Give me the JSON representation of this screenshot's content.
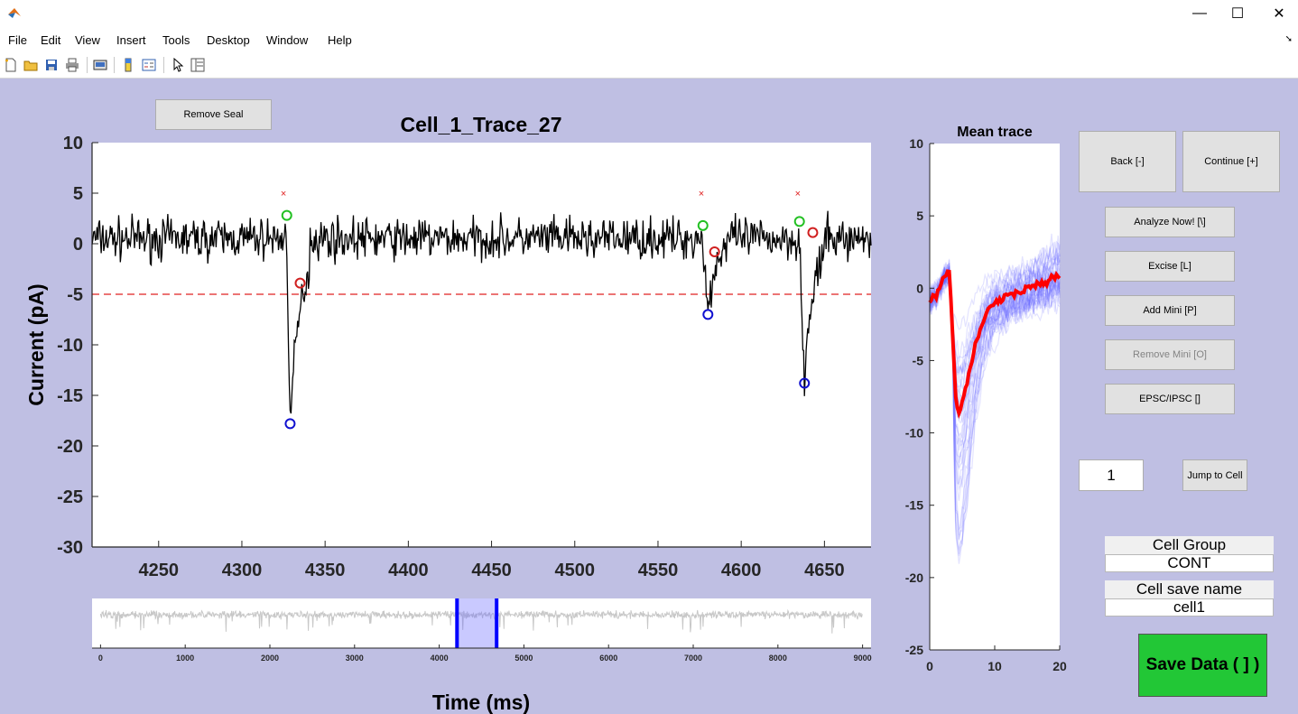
{
  "menu": [
    "File",
    "Edit",
    "View",
    "Insert",
    "Tools",
    "Desktop",
    "Window",
    "Help"
  ],
  "window_controls": {
    "minimize": "—",
    "maximize": "☐",
    "close": "✕"
  },
  "buttons": {
    "remove_seal": "Remove Seal",
    "back": "Back [-]",
    "continue": "Continue [+]",
    "analyze": "Analyze Now! [\\]",
    "excise": "Excise [L]",
    "add_mini": "Add Mini [P]",
    "remove_mini": "Remove Mini [O]",
    "epsc_ipsc": "EPSC/IPSC []",
    "jump_to_cell": "Jump to Cell",
    "save_data": "Save Data ( ] )"
  },
  "inputs": {
    "cell_number": "1"
  },
  "fields": {
    "cell_group_label": "Cell Group",
    "cell_group_value": "CONT",
    "cell_save_name_label": "Cell save name",
    "cell_save_name_value": "cell1"
  },
  "colors": {
    "figure_bg": "#bfbfe3",
    "trace": "#000000",
    "threshold": "#e02020",
    "onset": "#22c022",
    "peak": "#1010d0",
    "end": "#d02020",
    "mean": "#ff0000",
    "overlay": "#6464ff",
    "save_green": "#22c736"
  },
  "main_plot": {
    "title": "Cell_1_Trace_27",
    "ylabel": "Current (pA)",
    "xlabel": "Time (ms)",
    "xticks": [
      "4250",
      "4300",
      "4350",
      "4400",
      "4450",
      "4500",
      "4550",
      "4600",
      "4650"
    ],
    "yticks": [
      "10",
      "5",
      "0",
      "-5",
      "-10",
      "-15",
      "-20",
      "-25",
      "-30"
    ]
  },
  "overview_plot": {
    "xticks": [
      "0",
      "1000",
      "2000",
      "3000",
      "4000",
      "5000",
      "6000",
      "7000",
      "8000",
      "9000"
    ]
  },
  "mean_plot": {
    "title": "Mean trace",
    "xticks": [
      "0",
      "10",
      "20"
    ],
    "yticks": [
      "10",
      "5",
      "0",
      "-5",
      "-10",
      "-15",
      "-20",
      "-25"
    ]
  },
  "chart_data": [
    {
      "type": "line",
      "title": "Cell_1_Trace_27",
      "xlabel": "Time (ms)",
      "ylabel": "Current (pA)",
      "xlim": [
        4210,
        4678
      ],
      "ylim": [
        -30,
        10
      ],
      "threshold": -5,
      "events": [
        {
          "onset": [
            4327,
            2.8
          ],
          "peak": [
            4329,
            -17.8
          ],
          "end": [
            4335,
            -3.9
          ],
          "marker_x": [
            4325,
            5.0
          ]
        },
        {
          "onset": [
            4577,
            1.8
          ],
          "peak": [
            4580,
            -7.0
          ],
          "end": [
            4584,
            -0.8
          ],
          "marker_x": [
            4576,
            5.0
          ]
        },
        {
          "onset": [
            4635,
            2.2
          ],
          "peak": [
            4638,
            -13.8
          ],
          "end": [
            4643,
            1.1
          ],
          "marker_x": [
            4634,
            5.0
          ]
        }
      ],
      "baseline_mean": 0.5,
      "noise_amplitude": 2
    },
    {
      "type": "line",
      "xlim": [
        -100,
        9100
      ],
      "view_window": [
        4210,
        4678
      ]
    },
    {
      "type": "line",
      "title": "Mean trace",
      "xlim": [
        0,
        20
      ],
      "ylim": [
        -25,
        10
      ],
      "mean": {
        "x": [
          0,
          1,
          2,
          3,
          3.5,
          4,
          4.5,
          5,
          6,
          7,
          8,
          9,
          10,
          12,
          14,
          16,
          18,
          19,
          20
        ],
        "y": [
          -0.8,
          -0.5,
          0.5,
          1.2,
          -3,
          -7.5,
          -8.6,
          -8,
          -6,
          -4,
          -2.5,
          -1.5,
          -1,
          -0.5,
          -0.2,
          0.2,
          0.5,
          0.8,
          0.8
        ]
      }
    }
  ]
}
